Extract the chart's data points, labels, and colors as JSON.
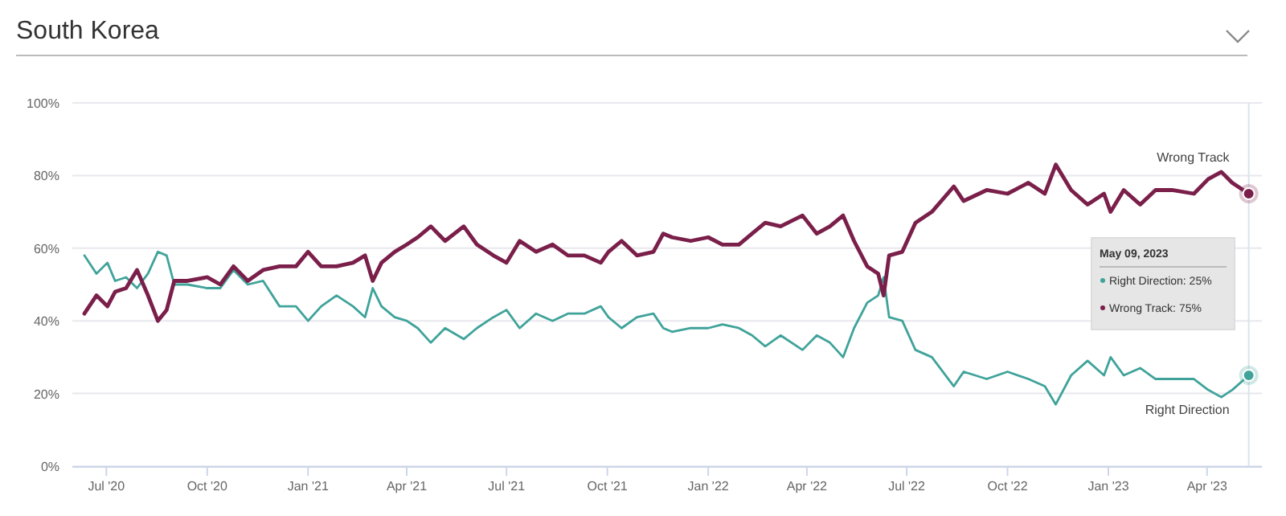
{
  "chart_data": {
    "type": "line",
    "title": "South Korea",
    "x": [
      "2020-06-11",
      "2020-06-22",
      "2020-07-02",
      "2020-07-09",
      "2020-07-19",
      "2020-07-29",
      "2020-08-08",
      "2020-08-17",
      "2020-08-25",
      "2020-09-01",
      "2020-09-13",
      "2020-10-01",
      "2020-10-13",
      "2020-10-25",
      "2020-11-07",
      "2020-11-21",
      "2020-12-06",
      "2020-12-21",
      "2021-01-01",
      "2021-01-13",
      "2021-01-27",
      "2021-02-11",
      "2021-02-22",
      "2021-03-01",
      "2021-03-09",
      "2021-03-21",
      "2021-04-01",
      "2021-04-11",
      "2021-04-23",
      "2021-05-06",
      "2021-05-23",
      "2021-06-04",
      "2021-06-19",
      "2021-07-01",
      "2021-07-13",
      "2021-07-28",
      "2021-08-12",
      "2021-08-26",
      "2021-09-10",
      "2021-09-25",
      "2021-10-02",
      "2021-10-14",
      "2021-10-28",
      "2021-11-12",
      "2021-11-21",
      "2021-11-29",
      "2021-12-16",
      "2022-01-01",
      "2022-01-14",
      "2022-01-29",
      "2022-02-10",
      "2022-02-22",
      "2022-03-08",
      "2022-03-28",
      "2022-04-10",
      "2022-04-22",
      "2022-05-04",
      "2022-05-14",
      "2022-05-26",
      "2022-06-05",
      "2022-06-10",
      "2022-06-15",
      "2022-06-27",
      "2022-07-09",
      "2022-07-24",
      "2022-08-13",
      "2022-08-22",
      "2022-09-12",
      "2022-10-01",
      "2022-10-20",
      "2022-11-04",
      "2022-11-14",
      "2022-11-28",
      "2022-12-13",
      "2022-12-28",
      "2023-01-03",
      "2023-01-15",
      "2023-01-30",
      "2023-02-13",
      "2023-02-28",
      "2023-03-20",
      "2023-04-02",
      "2023-04-14",
      "2023-04-24",
      "2023-05-09"
    ],
    "series": [
      {
        "name": "Right Direction",
        "color": "#3fa39a",
        "values": [
          58,
          53,
          56,
          51,
          52,
          49,
          53,
          59,
          58,
          50,
          50,
          49,
          49,
          54,
          50,
          51,
          44,
          44,
          40,
          44,
          47,
          44,
          41,
          49,
          44,
          41,
          40,
          38,
          34,
          38,
          35,
          38,
          41,
          43,
          38,
          42,
          40,
          42,
          42,
          44,
          41,
          38,
          41,
          42,
          38,
          37,
          38,
          38,
          39,
          38,
          36,
          33,
          36,
          32,
          36,
          34,
          30,
          38,
          45,
          47,
          52,
          41,
          40,
          32,
          30,
          22,
          26,
          24,
          26,
          24,
          22,
          17,
          25,
          29,
          25,
          30,
          25,
          27,
          24,
          24,
          24,
          21,
          19,
          21,
          25
        ]
      },
      {
        "name": "Wrong Track",
        "color": "#7a1f4a",
        "values": [
          42,
          47,
          44,
          48,
          49,
          54,
          47,
          40,
          43,
          51,
          51,
          52,
          50,
          55,
          51,
          54,
          55,
          55,
          59,
          55,
          55,
          56,
          58,
          51,
          56,
          59,
          61,
          63,
          66,
          62,
          66,
          61,
          58,
          56,
          62,
          59,
          61,
          58,
          58,
          56,
          59,
          62,
          58,
          59,
          64,
          63,
          62,
          63,
          61,
          61,
          64,
          67,
          66,
          69,
          64,
          66,
          69,
          62,
          55,
          53,
          47,
          58,
          59,
          67,
          70,
          77,
          73,
          76,
          75,
          78,
          75,
          83,
          76,
          72,
          75,
          70,
          76,
          72,
          76,
          76,
          75,
          79,
          81,
          78,
          75
        ]
      }
    ],
    "xlim": [
      "2020-05-31",
      "2023-05-21"
    ],
    "xticks": [
      {
        "value": "2020-07-01",
        "label": "Jul '20"
      },
      {
        "value": "2020-10-01",
        "label": "Oct '20"
      },
      {
        "value": "2021-01-01",
        "label": "Jan '21"
      },
      {
        "value": "2021-04-01",
        "label": "Apr '21"
      },
      {
        "value": "2021-07-01",
        "label": "Jul '21"
      },
      {
        "value": "2021-10-01",
        "label": "Oct '21"
      },
      {
        "value": "2022-01-01",
        "label": "Jan '22"
      },
      {
        "value": "2022-04-01",
        "label": "Apr '22"
      },
      {
        "value": "2022-07-01",
        "label": "Jul '22"
      },
      {
        "value": "2022-10-01",
        "label": "Oct '22"
      },
      {
        "value": "2023-01-01",
        "label": "Jan '23"
      },
      {
        "value": "2023-04-01",
        "label": "Apr '23"
      }
    ],
    "ylim": [
      0,
      100
    ],
    "yticks": [
      {
        "value": 0,
        "label": "0%"
      },
      {
        "value": 20,
        "label": "20%"
      },
      {
        "value": 40,
        "label": "40%"
      },
      {
        "value": 60,
        "label": "60%"
      },
      {
        "value": 80,
        "label": "80%"
      },
      {
        "value": 100,
        "label": "100%"
      }
    ],
    "grid": "y",
    "legend": false,
    "marker": "none",
    "line_style": "solid",
    "ref_lines": [
      {
        "axis": "x",
        "value": "2023-05-09",
        "color": "#dde3ec"
      }
    ],
    "annotations": [
      "May 09, 2023",
      "Right Direction: 25%",
      "Wrong Track: 75%"
    ]
  }
}
